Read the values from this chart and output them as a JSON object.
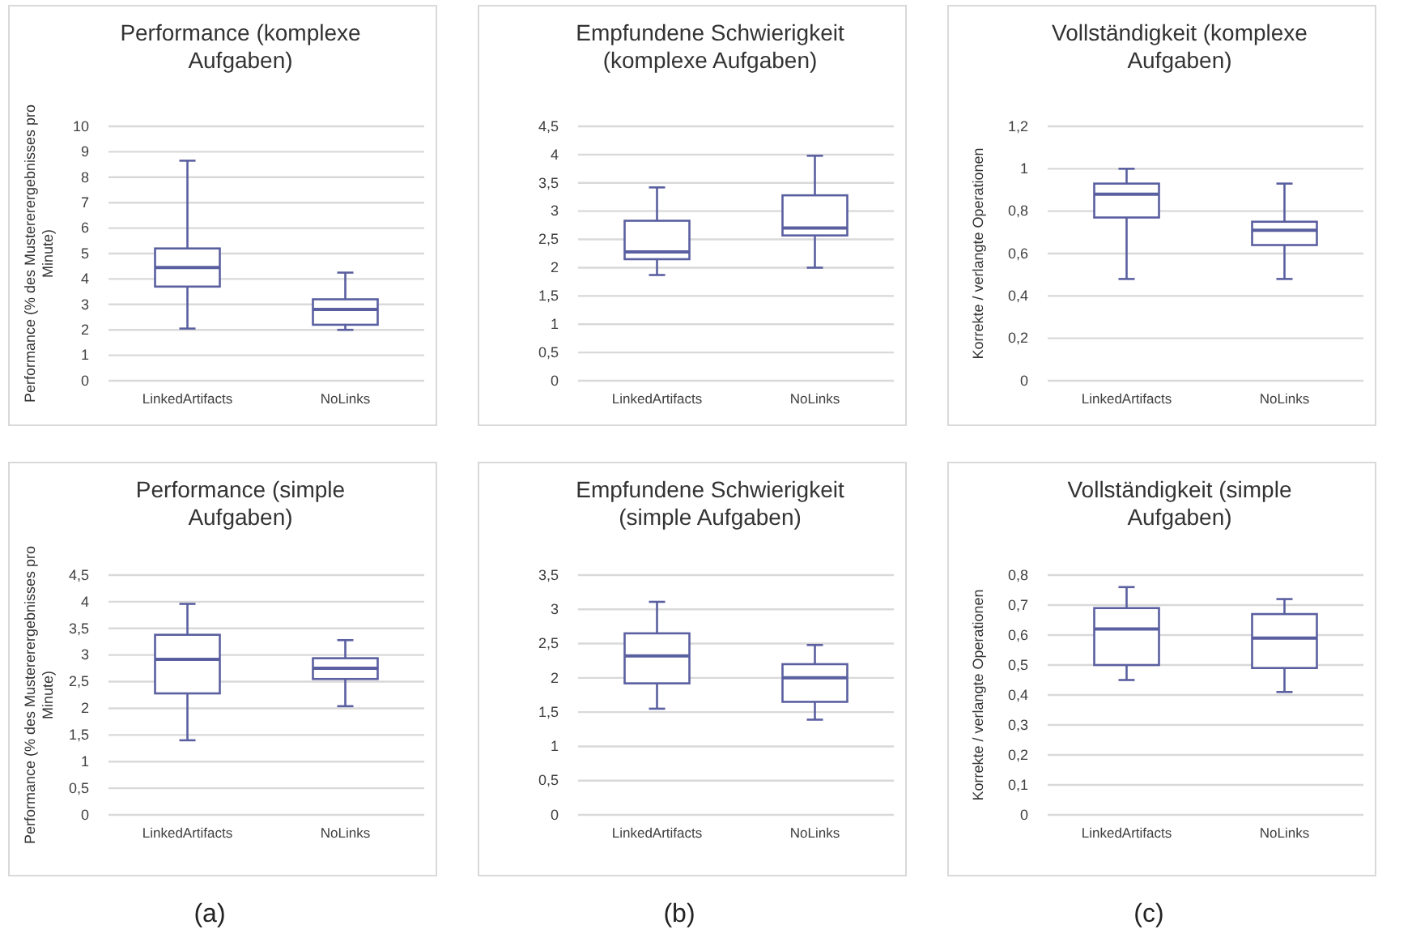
{
  "chart_data": [
    {
      "type": "box",
      "title": "Performance (komplexe Aufgaben)",
      "ylabel": "Performance (% des Mustererergebnisses pro Minute)",
      "categories": [
        "LinkedArtifacts",
        "NoLinks"
      ],
      "color": "#5a5fa0",
      "grid": "y",
      "ylim": [
        0,
        10
      ],
      "yticks": [
        0,
        1,
        2,
        3,
        4,
        5,
        6,
        7,
        8,
        9,
        10
      ],
      "boxes": [
        {
          "low": 2.05,
          "q1": 3.7,
          "median": 4.45,
          "q3": 5.2,
          "high": 8.65
        },
        {
          "low": 2.0,
          "q1": 2.2,
          "median": 2.8,
          "q3": 3.2,
          "high": 4.25
        }
      ]
    },
    {
      "type": "box",
      "title": "Empfundene Schwierigkeit (komplexe Aufgaben)",
      "categories": [
        "LinkedArtifacts",
        "NoLinks"
      ],
      "color": "#5a5fa0",
      "grid": "y",
      "ylim": [
        0,
        4.5
      ],
      "yticks": [
        0,
        {
          "value": 0.5,
          "label": "0,5"
        },
        1,
        {
          "value": 1.5,
          "label": "1,5"
        },
        2,
        {
          "value": 2.5,
          "label": "2,5"
        },
        3,
        {
          "value": 3.5,
          "label": "3,5"
        },
        4,
        {
          "value": 4.5,
          "label": "4,5"
        }
      ],
      "boxes": [
        {
          "low": 1.87,
          "q1": 2.15,
          "median": 2.28,
          "q3": 2.83,
          "high": 3.42
        },
        {
          "low": 2.0,
          "q1": 2.57,
          "median": 2.7,
          "q3": 3.28,
          "high": 3.98
        }
      ]
    },
    {
      "type": "box",
      "title": "Vollständigkeit (komplexe Aufgaben)",
      "ylabel": "Korrekte / verlangte Operationen",
      "categories": [
        "LinkedArtifacts",
        "NoLinks"
      ],
      "color": "#5a5fa0",
      "grid": "y",
      "ylim": [
        0,
        1.2
      ],
      "yticks": [
        0,
        {
          "value": 0.2,
          "label": "0,2"
        },
        {
          "value": 0.4,
          "label": "0,4"
        },
        {
          "value": 0.6,
          "label": "0,6"
        },
        {
          "value": 0.8,
          "label": "0,8"
        },
        1,
        {
          "value": 1.2,
          "label": "1,2"
        }
      ],
      "boxes": [
        {
          "low": 0.48,
          "q1": 0.77,
          "median": 0.88,
          "q3": 0.93,
          "high": 1.0
        },
        {
          "low": 0.48,
          "q1": 0.64,
          "median": 0.71,
          "q3": 0.75,
          "high": 0.93
        }
      ]
    },
    {
      "type": "box",
      "title": "Performance (simple Aufgaben)",
      "ylabel": "Performance (% des Mustererergebnisses pro Minute)",
      "annotations": [
        "(a)"
      ],
      "categories": [
        "LinkedArtifacts",
        "NoLinks"
      ],
      "color": "#5a5fa0",
      "grid": "y",
      "ylim": [
        0,
        4.5
      ],
      "yticks": [
        0,
        {
          "value": 0.5,
          "label": "0,5"
        },
        1,
        {
          "value": 1.5,
          "label": "1,5"
        },
        2,
        {
          "value": 2.5,
          "label": "2,5"
        },
        3,
        {
          "value": 3.5,
          "label": "3,5"
        },
        4,
        {
          "value": 4.5,
          "label": "4,5"
        }
      ],
      "boxes": [
        {
          "low": 1.4,
          "q1": 2.28,
          "median": 2.92,
          "q3": 3.38,
          "high": 3.96
        },
        {
          "low": 2.04,
          "q1": 2.55,
          "median": 2.75,
          "q3": 2.94,
          "high": 3.28
        }
      ]
    },
    {
      "type": "box",
      "title": "Empfundene Schwierigkeit (simple Aufgaben)",
      "annotations": [
        "(b)"
      ],
      "categories": [
        "LinkedArtifacts",
        "NoLinks"
      ],
      "color": "#5a5fa0",
      "grid": "y",
      "ylim": [
        0,
        3.5
      ],
      "yticks": [
        0,
        {
          "value": 0.5,
          "label": "0,5"
        },
        1,
        {
          "value": 1.5,
          "label": "1,5"
        },
        2,
        {
          "value": 2.5,
          "label": "2,5"
        },
        3,
        {
          "value": 3.5,
          "label": "3,5"
        }
      ],
      "boxes": [
        {
          "low": 1.55,
          "q1": 1.92,
          "median": 2.32,
          "q3": 2.65,
          "high": 3.11
        },
        {
          "low": 1.39,
          "q1": 1.65,
          "median": 2.0,
          "q3": 2.2,
          "high": 2.48
        }
      ]
    },
    {
      "type": "box",
      "title": "Vollständigkeit (simple Aufgaben)",
      "ylabel": "Korrekte / verlangte Operationen",
      "annotations": [
        "(c)"
      ],
      "categories": [
        "LinkedArtifacts",
        "NoLinks"
      ],
      "color": "#5a5fa0",
      "grid": "y",
      "ylim": [
        0,
        0.8
      ],
      "yticks": [
        0,
        {
          "value": 0.1,
          "label": "0,1"
        },
        {
          "value": 0.2,
          "label": "0,2"
        },
        {
          "value": 0.3,
          "label": "0,3"
        },
        {
          "value": 0.4,
          "label": "0,4"
        },
        {
          "value": 0.5,
          "label": "0,5"
        },
        {
          "value": 0.6,
          "label": "0,6"
        },
        {
          "value": 0.7,
          "label": "0,7"
        },
        {
          "value": 0.8,
          "label": "0,8"
        }
      ],
      "boxes": [
        {
          "low": 0.45,
          "q1": 0.5,
          "median": 0.62,
          "q3": 0.69,
          "high": 0.76
        },
        {
          "low": 0.41,
          "q1": 0.49,
          "median": 0.59,
          "q3": 0.67,
          "high": 0.72
        }
      ]
    }
  ]
}
